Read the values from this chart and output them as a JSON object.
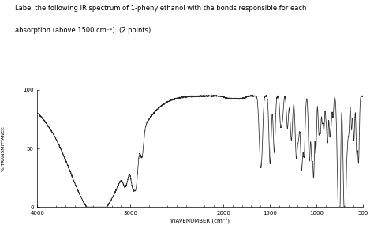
{
  "title_line1": "Label the following IR spectrum of 1-phenylethanol with the bonds responsible for each",
  "title_line2": "absorption (above 1500 cm⁻¹). (2 points)",
  "xlabel": "WAVENUMBER (cm⁻¹)",
  "ylabel": "% TRANSMITTANCE",
  "xlim": [
    4000,
    500
  ],
  "ylim": [
    0,
    100
  ],
  "yticks": [
    0,
    50,
    100
  ],
  "xticks": [
    4000,
    3000,
    2000,
    1500,
    1000,
    500
  ],
  "background": "#ffffff",
  "line_color": "#2a2a2a"
}
